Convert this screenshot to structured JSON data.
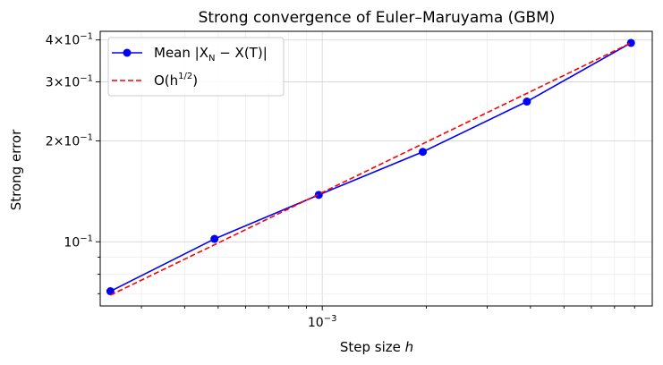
{
  "chart_data": {
    "type": "line",
    "title": "Strong convergence of Euler–Maruyama (GBM)",
    "xlabel_text": "Step size ",
    "xlabel_var": "h",
    "ylabel": "Strong error",
    "xscale": "log",
    "yscale": "log",
    "xlim": [
      0.000228,
      0.009
    ],
    "ylim": [
      0.06435,
      0.4245
    ],
    "grid": true,
    "legend_position": "upper-left",
    "x_ticks": [
      {
        "value": 0.001,
        "base": "10",
        "exp": "−3"
      }
    ],
    "y_ticks": [
      {
        "value": 0.1,
        "base": "10",
        "exp": "−1",
        "coef": ""
      },
      {
        "value": 0.2,
        "base": "10",
        "exp": "−1",
        "coef": "2×"
      },
      {
        "value": 0.3,
        "base": "10",
        "exp": "−1",
        "coef": "3×"
      },
      {
        "value": 0.4,
        "base": "10",
        "exp": "−1",
        "coef": "4×"
      }
    ],
    "series": [
      {
        "name": "Mean |X_N − X(T)|",
        "legend_main": "Mean |X",
        "legend_sub": "N",
        "legend_rest": " − X(T)|",
        "color": "#0000ff",
        "style": "solid",
        "marker": "circle",
        "x": [
          0.000244,
          0.000488,
          0.000977,
          0.001953,
          0.003906,
          0.007812
        ],
        "y": [
          0.0712,
          0.102,
          0.138,
          0.1855,
          0.262,
          0.392
        ]
      },
      {
        "name": "O(h^{1/2})",
        "legend_main": "O(h",
        "legend_sup": "1/2",
        "legend_rest": ")",
        "color": "#ff0000",
        "style": "dashed",
        "marker": "none",
        "x": [
          0.000244,
          0.007812
        ],
        "y": [
          0.0693,
          0.392
        ]
      }
    ]
  }
}
